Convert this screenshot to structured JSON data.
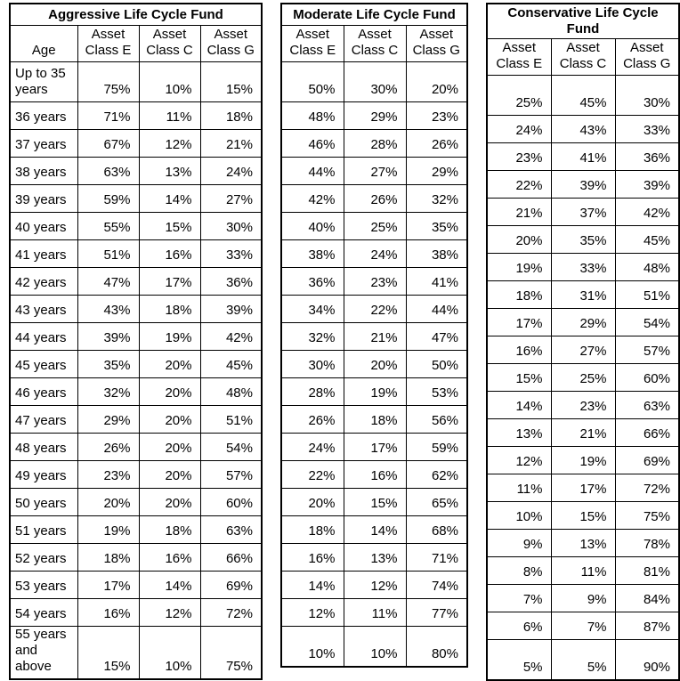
{
  "page": {
    "background_color": "#ffffff",
    "text_color": "#000000",
    "border_color": "#000000"
  },
  "tables": [
    {
      "id": "aggressive",
      "title": "Aggressive Life Cycle Fund",
      "age_header": "Age",
      "col_headers": [
        "Asset\nClass E",
        "Asset\nClass C",
        "Asset\nClass G"
      ],
      "rows": [
        {
          "age": "Up to 35\nyears",
          "values": [
            "75%",
            "10%",
            "15%"
          ],
          "tall": true
        },
        {
          "age": "36 years",
          "values": [
            "71%",
            "11%",
            "18%"
          ]
        },
        {
          "age": "37 years",
          "values": [
            "67%",
            "12%",
            "21%"
          ]
        },
        {
          "age": "38 years",
          "values": [
            "63%",
            "13%",
            "24%"
          ]
        },
        {
          "age": "39 years",
          "values": [
            "59%",
            "14%",
            "27%"
          ]
        },
        {
          "age": "40 years",
          "values": [
            "55%",
            "15%",
            "30%"
          ]
        },
        {
          "age": "41 years",
          "values": [
            "51%",
            "16%",
            "33%"
          ]
        },
        {
          "age": "42 years",
          "values": [
            "47%",
            "17%",
            "36%"
          ]
        },
        {
          "age": "43 years",
          "values": [
            "43%",
            "18%",
            "39%"
          ]
        },
        {
          "age": "44 years",
          "values": [
            "39%",
            "19%",
            "42%"
          ]
        },
        {
          "age": "45 years",
          "values": [
            "35%",
            "20%",
            "45%"
          ]
        },
        {
          "age": "46 years",
          "values": [
            "32%",
            "20%",
            "48%"
          ]
        },
        {
          "age": "47 years",
          "values": [
            "29%",
            "20%",
            "51%"
          ]
        },
        {
          "age": "48 years",
          "values": [
            "26%",
            "20%",
            "54%"
          ]
        },
        {
          "age": "49 years",
          "values": [
            "23%",
            "20%",
            "57%"
          ]
        },
        {
          "age": "50 years",
          "values": [
            "20%",
            "20%",
            "60%"
          ]
        },
        {
          "age": "51 years",
          "values": [
            "19%",
            "18%",
            "63%"
          ]
        },
        {
          "age": "52 years",
          "values": [
            "18%",
            "16%",
            "66%"
          ]
        },
        {
          "age": "53 years",
          "values": [
            "17%",
            "14%",
            "69%"
          ]
        },
        {
          "age": "54 years",
          "values": [
            "16%",
            "12%",
            "72%"
          ]
        },
        {
          "age": "55 years\nand above",
          "values": [
            "15%",
            "10%",
            "75%"
          ],
          "tall": true
        }
      ]
    },
    {
      "id": "moderate",
      "title": "Moderate Life Cycle Fund",
      "col_headers": [
        "Asset\nClass E",
        "Asset\nClass C",
        "Asset\nClass G"
      ],
      "rows": [
        {
          "values": [
            "50%",
            "30%",
            "20%"
          ],
          "tall": true
        },
        {
          "values": [
            "48%",
            "29%",
            "23%"
          ]
        },
        {
          "values": [
            "46%",
            "28%",
            "26%"
          ]
        },
        {
          "values": [
            "44%",
            "27%",
            "29%"
          ]
        },
        {
          "values": [
            "42%",
            "26%",
            "32%"
          ]
        },
        {
          "values": [
            "40%",
            "25%",
            "35%"
          ]
        },
        {
          "values": [
            "38%",
            "24%",
            "38%"
          ]
        },
        {
          "values": [
            "36%",
            "23%",
            "41%"
          ]
        },
        {
          "values": [
            "34%",
            "22%",
            "44%"
          ]
        },
        {
          "values": [
            "32%",
            "21%",
            "47%"
          ]
        },
        {
          "values": [
            "30%",
            "20%",
            "50%"
          ]
        },
        {
          "values": [
            "28%",
            "19%",
            "53%"
          ]
        },
        {
          "values": [
            "26%",
            "18%",
            "56%"
          ]
        },
        {
          "values": [
            "24%",
            "17%",
            "59%"
          ]
        },
        {
          "values": [
            "22%",
            "16%",
            "62%"
          ]
        },
        {
          "values": [
            "20%",
            "15%",
            "65%"
          ]
        },
        {
          "values": [
            "18%",
            "14%",
            "68%"
          ]
        },
        {
          "values": [
            "16%",
            "13%",
            "71%"
          ]
        },
        {
          "values": [
            "14%",
            "12%",
            "74%"
          ]
        },
        {
          "values": [
            "12%",
            "11%",
            "77%"
          ]
        },
        {
          "values": [
            "10%",
            "10%",
            "80%"
          ],
          "tall": true
        }
      ]
    },
    {
      "id": "conservative",
      "title": "Conservative Life Cycle Fund",
      "col_headers": [
        "Asset\nClass E",
        "Asset\nClass C",
        "Asset\nClass G"
      ],
      "rows": [
        {
          "values": [
            "25%",
            "45%",
            "30%"
          ],
          "tall": true
        },
        {
          "values": [
            "24%",
            "43%",
            "33%"
          ]
        },
        {
          "values": [
            "23%",
            "41%",
            "36%"
          ]
        },
        {
          "values": [
            "22%",
            "39%",
            "39%"
          ]
        },
        {
          "values": [
            "21%",
            "37%",
            "42%"
          ]
        },
        {
          "values": [
            "20%",
            "35%",
            "45%"
          ]
        },
        {
          "values": [
            "19%",
            "33%",
            "48%"
          ]
        },
        {
          "values": [
            "18%",
            "31%",
            "51%"
          ]
        },
        {
          "values": [
            "17%",
            "29%",
            "54%"
          ]
        },
        {
          "values": [
            "16%",
            "27%",
            "57%"
          ]
        },
        {
          "values": [
            "15%",
            "25%",
            "60%"
          ]
        },
        {
          "values": [
            "14%",
            "23%",
            "63%"
          ]
        },
        {
          "values": [
            "13%",
            "21%",
            "66%"
          ]
        },
        {
          "values": [
            "12%",
            "19%",
            "69%"
          ]
        },
        {
          "values": [
            "11%",
            "17%",
            "72%"
          ]
        },
        {
          "values": [
            "10%",
            "15%",
            "75%"
          ]
        },
        {
          "values": [
            "9%",
            "13%",
            "78%"
          ]
        },
        {
          "values": [
            "8%",
            "11%",
            "81%"
          ]
        },
        {
          "values": [
            "7%",
            "9%",
            "84%"
          ]
        },
        {
          "values": [
            "6%",
            "7%",
            "87%"
          ]
        },
        {
          "values": [
            "5%",
            "5%",
            "90%"
          ],
          "tall": true
        }
      ]
    }
  ]
}
